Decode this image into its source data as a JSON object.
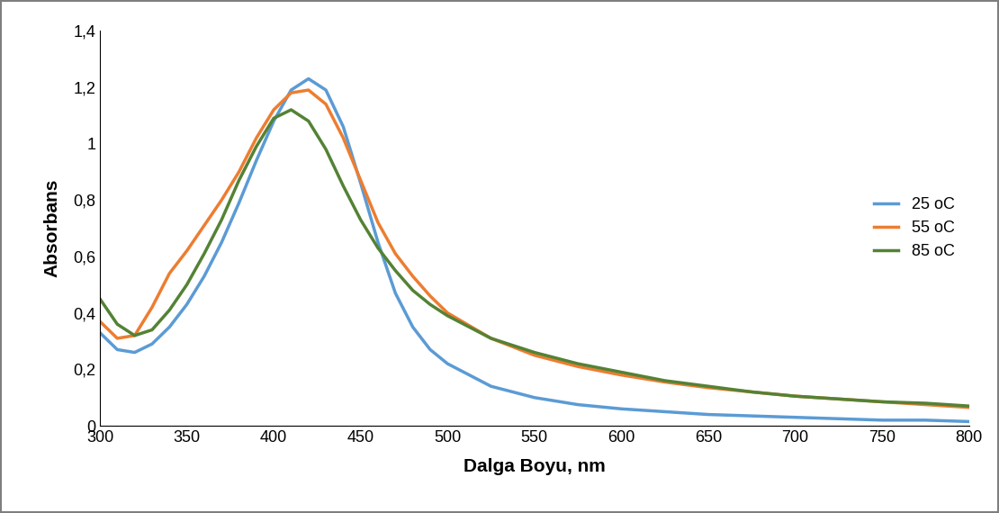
{
  "chart_data": {
    "type": "line",
    "x_label": "Dalga Boyu, nm",
    "y_label": "Absorbans",
    "x": [
      300,
      310,
      320,
      330,
      340,
      350,
      360,
      370,
      380,
      390,
      400,
      410,
      420,
      430,
      440,
      450,
      460,
      470,
      480,
      490,
      500,
      525,
      550,
      575,
      600,
      625,
      650,
      675,
      700,
      725,
      750,
      775,
      800
    ],
    "series": [
      {
        "name": "25 oC",
        "color": "#5b9bd5",
        "values": [
          0.33,
          0.27,
          0.26,
          0.29,
          0.35,
          0.43,
          0.53,
          0.65,
          0.79,
          0.94,
          1.08,
          1.19,
          1.23,
          1.19,
          1.06,
          0.86,
          0.65,
          0.47,
          0.35,
          0.27,
          0.22,
          0.14,
          0.1,
          0.075,
          0.06,
          0.05,
          0.04,
          0.035,
          0.03,
          0.025,
          0.02,
          0.02,
          0.015
        ]
      },
      {
        "name": "55 oC",
        "color": "#ed7d31",
        "values": [
          0.37,
          0.31,
          0.32,
          0.42,
          0.54,
          0.62,
          0.71,
          0.8,
          0.9,
          1.02,
          1.12,
          1.18,
          1.19,
          1.14,
          1.02,
          0.87,
          0.72,
          0.61,
          0.53,
          0.46,
          0.4,
          0.31,
          0.25,
          0.21,
          0.18,
          0.155,
          0.135,
          0.12,
          0.105,
          0.095,
          0.085,
          0.075,
          0.065
        ]
      },
      {
        "name": "85 oC",
        "color": "#548235",
        "values": [
          0.45,
          0.36,
          0.32,
          0.34,
          0.41,
          0.5,
          0.61,
          0.73,
          0.87,
          0.99,
          1.09,
          1.12,
          1.08,
          0.98,
          0.85,
          0.73,
          0.63,
          0.55,
          0.48,
          0.43,
          0.39,
          0.31,
          0.26,
          0.22,
          0.19,
          0.16,
          0.14,
          0.12,
          0.105,
          0.095,
          0.085,
          0.08,
          0.07
        ]
      }
    ],
    "xlim": [
      300,
      800
    ],
    "xticks": [
      300,
      350,
      400,
      450,
      500,
      550,
      600,
      650,
      700,
      750,
      800
    ],
    "ylim": [
      0,
      1.4
    ],
    "yticks": [
      0,
      {
        "value": 0.2,
        "label": "0,2"
      },
      {
        "value": 0.4,
        "label": "0,4"
      },
      {
        "value": 0.6,
        "label": "0,6"
      },
      {
        "value": 0.8,
        "label": "0,8"
      },
      {
        "value": 1,
        "label": "1"
      },
      {
        "value": 1.2,
        "label": "1,2"
      },
      {
        "value": 1.4,
        "label": "1,4"
      }
    ],
    "grid": false,
    "legend": "right"
  }
}
